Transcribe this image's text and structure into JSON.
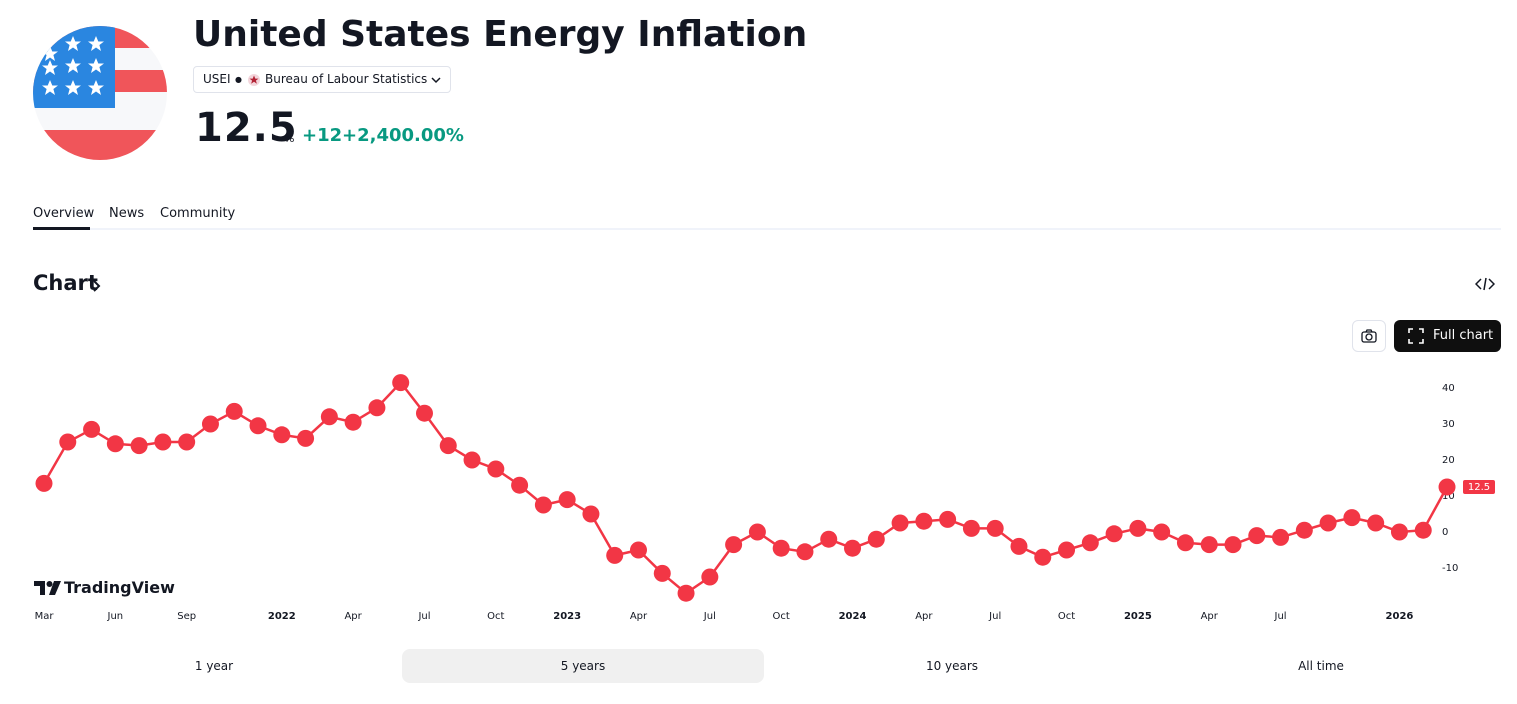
{
  "header": {
    "title": "United States Energy Inflation",
    "symbol": "USEI",
    "source": "Bureau of Labour Statistics",
    "value": 12.5,
    "unit": "%",
    "change": "+12",
    "change_percent": "+2,400.00%"
  },
  "tabs": [
    "Overview",
    "News",
    "Community"
  ],
  "section_title": "Chart",
  "full_chart_button": "Full chart",
  "brand": "TradingView",
  "ranges": [
    "1 year",
    "5 years",
    "10 years",
    "All time"
  ],
  "chart_data": {
    "type": "line",
    "color": "#f23645",
    "categories": [
      "Mar",
      null,
      null,
      "Jun",
      null,
      null,
      "Sep",
      null,
      null,
      null,
      "2022",
      null,
      null,
      "Apr",
      null,
      null,
      "Jul",
      null,
      null,
      "Oct",
      null,
      null,
      "2023",
      null,
      null,
      "Apr",
      null,
      null,
      "Jul",
      null,
      null,
      "Oct",
      null,
      null,
      "2024",
      null,
      null,
      "Apr",
      null,
      null,
      "Jul",
      null,
      null,
      "Oct",
      null,
      null,
      "2025",
      null,
      null,
      "Apr",
      null,
      null,
      "Jul",
      null,
      null,
      null,
      null,
      "2026",
      null,
      null
    ],
    "values": [
      13.5,
      25,
      28.5,
      24.5,
      24,
      25,
      25,
      30,
      33.5,
      29.5,
      27,
      26,
      32,
      30.5,
      34.5,
      41.5,
      33,
      24,
      20,
      17.5,
      13,
      7.5,
      9,
      5,
      -6.5,
      -5,
      -11.5,
      -17,
      -12.5,
      -3.5,
      0,
      -4.5,
      -5.5,
      -2,
      -4.5,
      -2,
      2.5,
      3,
      3.5,
      1,
      1,
      -4,
      -7,
      -5,
      -3,
      -0.5,
      1,
      0,
      -3,
      -3.5,
      -3.5,
      -1,
      -1.5,
      0.5,
      2.5,
      4,
      2.5,
      0,
      0.5,
      12.5
    ],
    "ylim": [
      -18,
      45
    ],
    "yticks": [
      -10,
      0,
      10,
      20,
      30,
      40
    ],
    "grid": false
  }
}
